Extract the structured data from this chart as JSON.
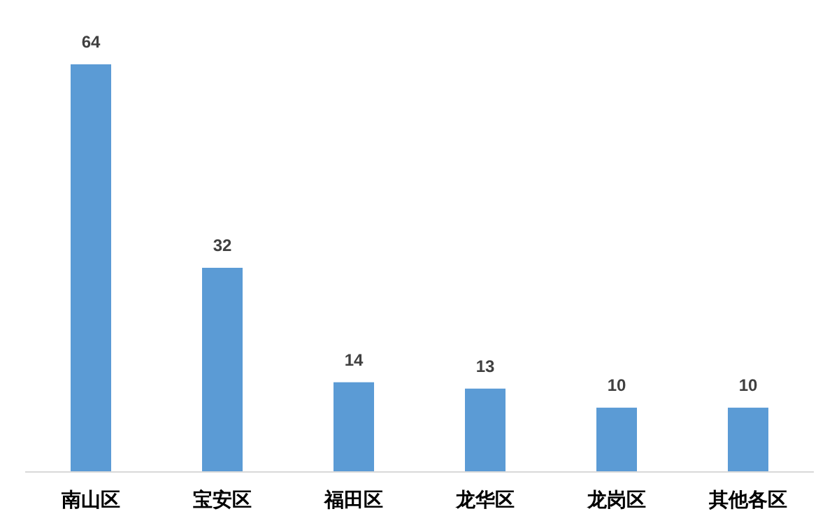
{
  "chart_data": {
    "type": "bar",
    "categories": [
      "南山区",
      "宝安区",
      "福田区",
      "龙华区",
      "龙岗区",
      "其他各区"
    ],
    "values": [
      64,
      32,
      14,
      13,
      10,
      10
    ],
    "color": "#5b9bd5",
    "data_labels": true
  }
}
